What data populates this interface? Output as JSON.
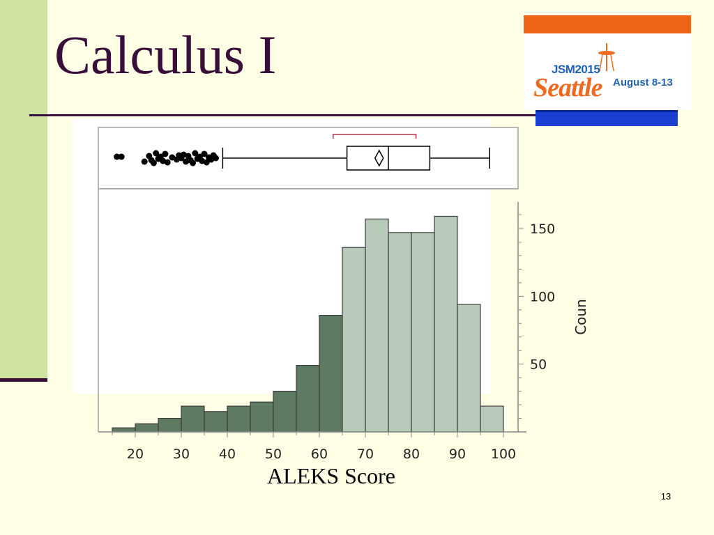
{
  "slide": {
    "title": "Calculus I",
    "page_number": "13"
  },
  "logo": {
    "brand_text": "JSM2015",
    "city_text": "Seattle",
    "dates_text": "August 8-13"
  },
  "colors": {
    "background": "#ffffe6",
    "title": "#3a0e3a",
    "bar_below": "#5e7a60",
    "bar_above": "#b8cbb8",
    "bar_stroke": "#3c3c3c",
    "shortest_half_bracket": "#c0304a"
  },
  "chart_data": {
    "type": "bar",
    "xlabel": "ALEKS Score",
    "ylabel": "Coun",
    "x_ticks": [
      20,
      30,
      40,
      50,
      60,
      70,
      80,
      90,
      100
    ],
    "y_ticks": [
      50,
      100,
      150
    ],
    "xlim": [
      15,
      104
    ],
    "ylim": [
      0,
      170
    ],
    "grid": false,
    "bins": [
      {
        "start": 15,
        "end": 20,
        "count": 3
      },
      {
        "start": 20,
        "end": 25,
        "count": 6
      },
      {
        "start": 25,
        "end": 30,
        "count": 10
      },
      {
        "start": 30,
        "end": 35,
        "count": 19
      },
      {
        "start": 35,
        "end": 40,
        "count": 15
      },
      {
        "start": 40,
        "end": 45,
        "count": 19
      },
      {
        "start": 45,
        "end": 50,
        "count": 22
      },
      {
        "start": 50,
        "end": 55,
        "count": 30
      },
      {
        "start": 55,
        "end": 60,
        "count": 49
      },
      {
        "start": 60,
        "end": 65,
        "count": 86
      },
      {
        "start": 65,
        "end": 70,
        "count": 136
      },
      {
        "start": 70,
        "end": 75,
        "count": 157
      },
      {
        "start": 75,
        "end": 80,
        "count": 147
      },
      {
        "start": 80,
        "end": 85,
        "count": 147
      },
      {
        "start": 85,
        "end": 90,
        "count": 159
      },
      {
        "start": 90,
        "end": 95,
        "count": 94
      },
      {
        "start": 95,
        "end": 100,
        "count": 19
      }
    ],
    "highlight_from_x": 65,
    "boxplot": {
      "whisker_low": 39,
      "q1": 66,
      "median": 75,
      "q3": 84,
      "whisker_high": 97,
      "mean": 73,
      "shortest_half": [
        63,
        81
      ],
      "outliers": [
        16,
        17,
        22,
        23,
        23.5,
        24,
        24.5,
        25,
        25.5,
        26,
        26.5,
        27,
        28,
        29,
        29.5,
        30,
        30.5,
        31,
        31.5,
        32,
        32.5,
        33,
        33.5,
        34,
        34.5,
        35,
        35.5,
        36,
        36.5,
        37,
        37.5
      ]
    }
  }
}
